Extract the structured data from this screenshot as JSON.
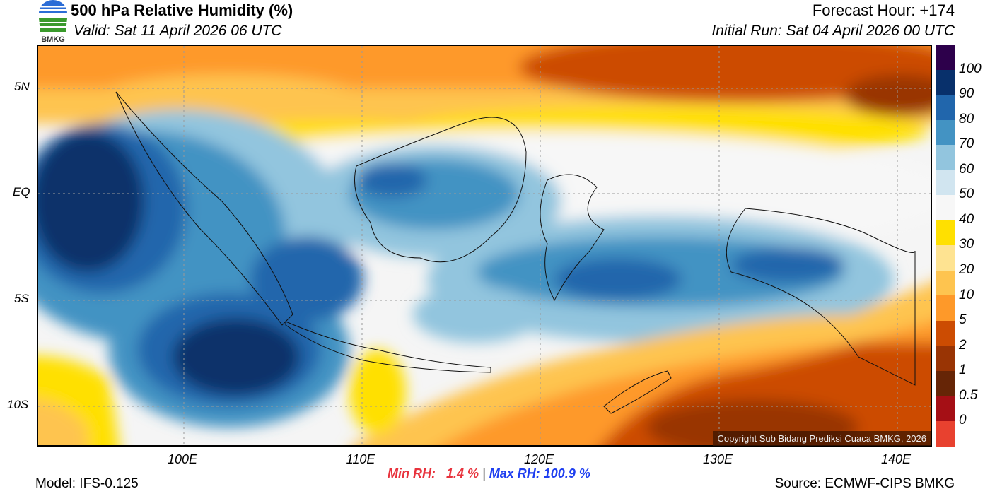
{
  "header": {
    "title": "500 hPa Relative Humidity (%)",
    "valid": "Valid: Sat 11 April 2026 06 UTC",
    "forecast_hour": "Forecast Hour: +174",
    "initial_run": "Initial Run: Sat 04 April 2026 00 UTC",
    "logo_text": "BMKG"
  },
  "axes": {
    "x_ticks": [
      "100E",
      "110E",
      "120E",
      "130E",
      "140E"
    ],
    "y_ticks": [
      "5N",
      "EQ",
      "5S",
      "10S"
    ]
  },
  "colorbar": {
    "labels": [
      "100",
      "90",
      "80",
      "70",
      "60",
      "50",
      "40",
      "30",
      "20",
      "10",
      "5",
      "2",
      "1",
      "0.5",
      "0"
    ],
    "colors": [
      "#2d004b",
      "#08306b",
      "#2166ac",
      "#4393c3",
      "#92c5de",
      "#d1e5f0",
      "#f7f7f7",
      "#ffe000",
      "#fee391",
      "#fec44f",
      "#fe9929",
      "#cc4c02",
      "#993404",
      "#662506",
      "#a50f15",
      "#e8412f"
    ]
  },
  "copyright": "Copyright Sub Bidang Prediksi Cuaca BMKG, 2026",
  "stats": {
    "min_label": "Min RH:",
    "min_value": "1.4 %",
    "sep": "|",
    "max_label": "Max RH:",
    "max_value": "100.9 %"
  },
  "footer": {
    "model": "Model: IFS-0.125",
    "source": "Source: ECMWF-CIPS BMKG"
  }
}
